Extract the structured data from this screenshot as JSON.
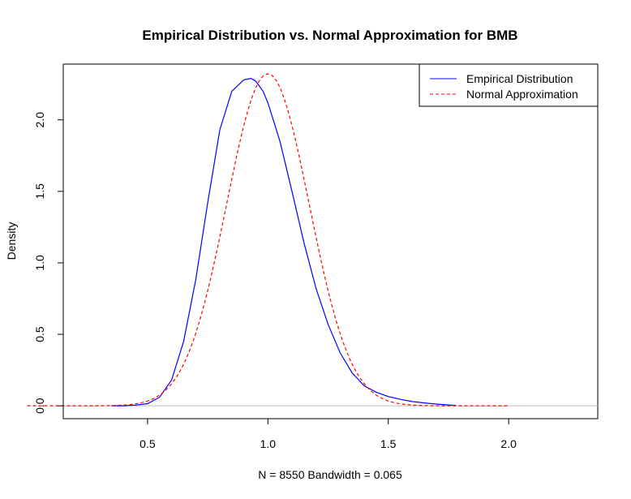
{
  "chart_data": {
    "type": "line",
    "title": "Empirical Distribution vs. Normal Approximation for BMB",
    "xlabel": "N = 8550   Bandwidth = 0.065",
    "ylabel": "Density",
    "xlim": [
      0.15,
      2.37
    ],
    "ylim": [
      -0.09,
      2.39
    ],
    "xticks": [
      0.5,
      1.0,
      1.5,
      2.0
    ],
    "xtick_labels": [
      "0.5",
      "1.0",
      "1.5",
      "2.0"
    ],
    "yticks": [
      0.0,
      0.5,
      1.0,
      1.5,
      2.0
    ],
    "ytick_labels": [
      "0.0",
      "0.5",
      "1.0",
      "1.5",
      "2.0"
    ],
    "baseline": {
      "y": 0,
      "color": "#bebebe"
    },
    "grid": false,
    "legend_position": "top-right",
    "series": [
      {
        "name": "Empirical Distribution",
        "color": "#0000ff",
        "style": "solid",
        "x": [
          0.35,
          0.4,
          0.45,
          0.5,
          0.55,
          0.6,
          0.65,
          0.7,
          0.75,
          0.8,
          0.85,
          0.9,
          0.93,
          0.95,
          0.98,
          1.0,
          1.05,
          1.1,
          1.15,
          1.2,
          1.25,
          1.3,
          1.35,
          1.4,
          1.45,
          1.5,
          1.55,
          1.6,
          1.65,
          1.7,
          1.75,
          1.78
        ],
        "y": [
          0.0,
          0.0,
          0.005,
          0.015,
          0.06,
          0.18,
          0.45,
          0.88,
          1.42,
          1.93,
          2.2,
          2.28,
          2.29,
          2.27,
          2.2,
          2.12,
          1.85,
          1.5,
          1.14,
          0.82,
          0.57,
          0.37,
          0.23,
          0.14,
          0.095,
          0.065,
          0.045,
          0.03,
          0.02,
          0.012,
          0.006,
          0.003
        ]
      },
      {
        "name": "Normal Approximation",
        "color": "#ff0000",
        "style": "dashed",
        "mean": 1.0,
        "sd": 0.1718,
        "x_range": [
          0.0,
          2.0
        ]
      }
    ]
  },
  "legend": {
    "items": [
      {
        "label": "Empirical Distribution",
        "color": "#0000ff",
        "style": "solid"
      },
      {
        "label": "Normal Approximation",
        "color": "#ff0000",
        "style": "dashed"
      }
    ]
  }
}
